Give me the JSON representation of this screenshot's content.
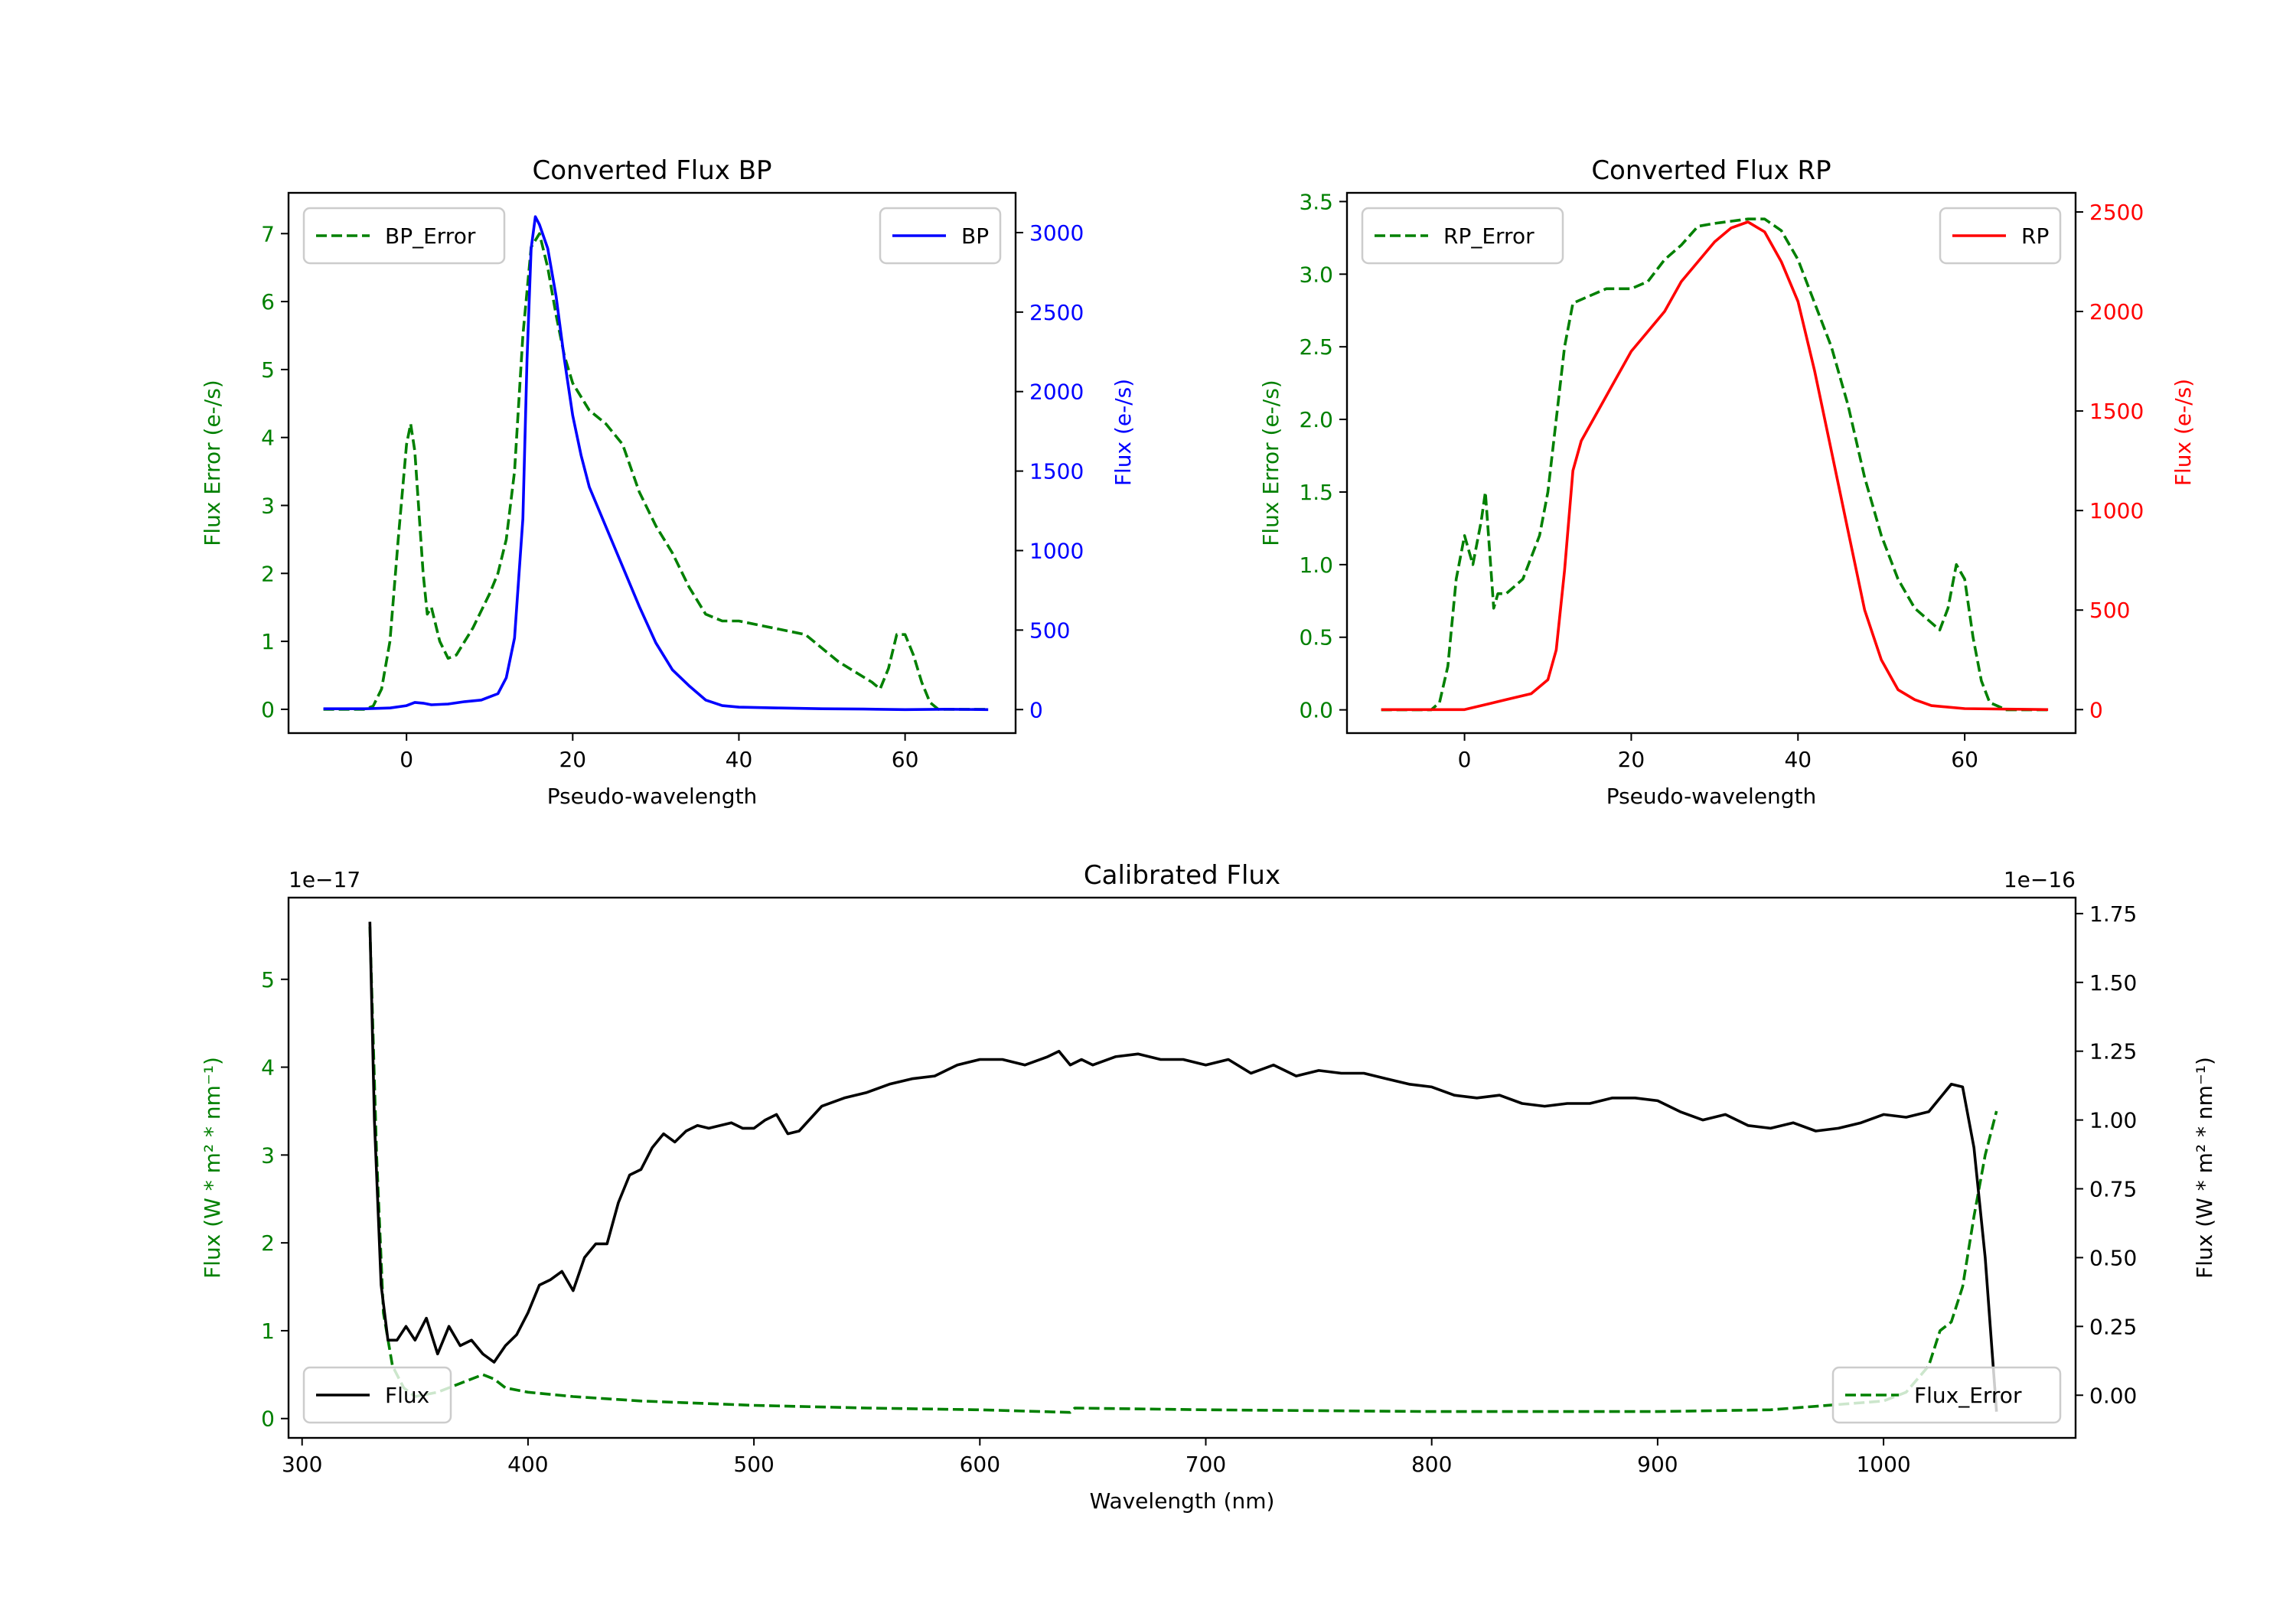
{
  "chart_data": [
    {
      "type": "line",
      "title": "Converted Flux BP",
      "xlabel": "Pseudo-wavelength",
      "ylabel_left": "Flux Error (e-/s)",
      "ylabel_right": "Flux (e-/s)",
      "xlim": [
        -14.2,
        73.3
      ],
      "ylim_left": [
        -0.35,
        7.6
      ],
      "ylim_right": [
        -148,
        3250
      ],
      "xticks": [
        0,
        20,
        40,
        60
      ],
      "xtick_labels": [
        "0",
        "20",
        "40",
        "60"
      ],
      "yticks_left": [
        0,
        1,
        2,
        3,
        4,
        5,
        6,
        7
      ],
      "ytick_labels_left": [
        "0",
        "1",
        "2",
        "3",
        "4",
        "5",
        "6",
        "7"
      ],
      "yticks_right": [
        0,
        500,
        1000,
        1500,
        2000,
        2500,
        3000
      ],
      "ytick_labels_right": [
        "0",
        "500",
        "1000",
        "1500",
        "2000",
        "2500",
        "3000"
      ],
      "left_color": "#008000",
      "right_color": "#0000ff",
      "series": [
        {
          "name": "BP_Error",
          "axis": "left",
          "style": "dashed",
          "color": "#008000",
          "legend": "upper left",
          "x": [
            -10,
            -5,
            -4,
            -3,
            -2,
            -1,
            0,
            0.5,
            1,
            2,
            2.5,
            3,
            4,
            5,
            6,
            7,
            8,
            10,
            11,
            12,
            13,
            14,
            15,
            16,
            17,
            18,
            19,
            20,
            22,
            24,
            26,
            28,
            30,
            32,
            34,
            36,
            38,
            40,
            44,
            48,
            50,
            52,
            56,
            57,
            58,
            59,
            60,
            61,
            62,
            63,
            64,
            70
          ],
          "y": [
            0,
            0,
            0.05,
            0.3,
            1,
            2.5,
            3.9,
            4.2,
            3.8,
            2,
            1.4,
            1.5,
            1.0,
            0.75,
            0.8,
            1.0,
            1.2,
            1.7,
            2.0,
            2.5,
            3.5,
            5.5,
            6.8,
            7.0,
            6.5,
            5.8,
            5.2,
            4.8,
            4.4,
            4.2,
            3.9,
            3.2,
            2.7,
            2.3,
            1.8,
            1.4,
            1.3,
            1.3,
            1.2,
            1.1,
            0.9,
            0.7,
            0.4,
            0.3,
            0.6,
            1.1,
            1.1,
            0.8,
            0.4,
            0.1,
            0,
            0
          ]
        },
        {
          "name": "BP",
          "axis": "right",
          "style": "solid",
          "color": "#0000ff",
          "legend": "upper right",
          "x": [
            -10,
            -5,
            -2,
            0,
            1,
            2,
            3,
            5,
            7,
            9,
            11,
            12,
            13,
            14,
            14.5,
            15,
            15.5,
            16,
            17,
            18,
            19,
            20,
            21,
            22,
            24,
            26,
            28,
            30,
            32,
            34,
            36,
            38,
            40,
            45,
            50,
            55,
            60,
            65,
            70
          ],
          "y": [
            5,
            5,
            10,
            25,
            45,
            40,
            30,
            35,
            50,
            60,
            100,
            200,
            450,
            1200,
            2200,
            2900,
            3100,
            3050,
            2900,
            2600,
            2200,
            1850,
            1600,
            1400,
            1150,
            900,
            650,
            420,
            250,
            150,
            60,
            25,
            15,
            10,
            5,
            3,
            0,
            2,
            0
          ]
        }
      ]
    },
    {
      "type": "line",
      "title": "Converted Flux RP",
      "xlabel": "Pseudo-wavelength",
      "ylabel_left": "Flux Error (e-/s)",
      "ylabel_right": "Flux (e-/s)",
      "xlim": [
        -14.1,
        73.3
      ],
      "ylim_left": [
        -0.16,
        3.56
      ],
      "ylim_right": [
        -118,
        2596
      ],
      "xticks": [
        0,
        20,
        40,
        60
      ],
      "xtick_labels": [
        "0",
        "20",
        "40",
        "60"
      ],
      "yticks_left": [
        0,
        0.5,
        1,
        1.5,
        2,
        2.5,
        3,
        3.5
      ],
      "ytick_labels_left": [
        "0.0",
        "0.5",
        "1.0",
        "1.5",
        "2.0",
        "2.5",
        "3.0",
        "3.5"
      ],
      "yticks_right": [
        0,
        500,
        1000,
        1500,
        2000,
        2500
      ],
      "ytick_labels_right": [
        "0",
        "500",
        "1000",
        "1500",
        "2000",
        "2500"
      ],
      "left_color": "#008000",
      "right_color": "#ff0000",
      "series": [
        {
          "name": "RP_Error",
          "axis": "left",
          "style": "dashed",
          "color": "#008000",
          "legend": "upper left",
          "x": [
            -10,
            -4,
            -3,
            -2,
            -1,
            0,
            0.5,
            1,
            2,
            2.5,
            3,
            3.5,
            4,
            5,
            7,
            9,
            10,
            11,
            12,
            13,
            15,
            17,
            20,
            22,
            24,
            26,
            28,
            30,
            34,
            36,
            38,
            40,
            42,
            44,
            46,
            48,
            50,
            52,
            54,
            56,
            57,
            58,
            59,
            60,
            61,
            62,
            63,
            65,
            70
          ],
          "y": [
            0,
            0,
            0.05,
            0.3,
            0.9,
            1.2,
            1.1,
            1.0,
            1.3,
            1.5,
            1.1,
            0.7,
            0.8,
            0.8,
            0.9,
            1.2,
            1.5,
            2.0,
            2.5,
            2.8,
            2.85,
            2.9,
            2.9,
            2.95,
            3.1,
            3.2,
            3.33,
            3.35,
            3.38,
            3.38,
            3.3,
            3.1,
            2.8,
            2.5,
            2.1,
            1.6,
            1.2,
            0.9,
            0.7,
            0.6,
            0.55,
            0.7,
            1.0,
            0.9,
            0.5,
            0.2,
            0.05,
            0,
            0
          ]
        },
        {
          "name": "RP",
          "axis": "right",
          "style": "solid",
          "color": "#ff0000",
          "legend": "upper right",
          "x": [
            -10,
            0,
            3,
            5,
            8,
            10,
            11,
            12,
            13,
            14,
            16,
            18,
            20,
            22,
            24,
            26,
            28,
            30,
            32,
            34,
            36,
            38,
            40,
            42,
            44,
            46,
            48,
            50,
            52,
            54,
            56,
            60,
            70
          ],
          "y": [
            0,
            0,
            30,
            50,
            80,
            150,
            300,
            700,
            1200,
            1350,
            1500,
            1650,
            1800,
            1900,
            2000,
            2150,
            2250,
            2350,
            2420,
            2450,
            2400,
            2250,
            2050,
            1700,
            1300,
            900,
            500,
            250,
            100,
            50,
            20,
            5,
            0
          ]
        }
      ]
    },
    {
      "type": "line",
      "title": "Calibrated Flux",
      "xlabel": "Wavelength (nm)",
      "ylabel_left": "Flux (W * m² * nm⁻¹)",
      "ylabel_right": "Flux (W * m² * nm⁻¹)",
      "offset_left": "1e−17",
      "offset_right": "1e−16",
      "xlim": [
        294,
        1085
      ],
      "ylim_left": [
        -0.22,
        5.93
      ],
      "ylim_right": [
        -0.155,
        1.808
      ],
      "xticks": [
        300,
        400,
        500,
        600,
        700,
        800,
        900,
        1000
      ],
      "xtick_labels": [
        "300",
        "400",
        "500",
        "600",
        "700",
        "800",
        "900",
        "1000"
      ],
      "yticks_left": [
        0,
        1,
        2,
        3,
        4,
        5
      ],
      "ytick_labels_left": [
        "0",
        "1",
        "2",
        "3",
        "4",
        "5"
      ],
      "yticks_right": [
        0,
        0.25,
        0.5,
        0.75,
        1.0,
        1.25,
        1.5,
        1.75
      ],
      "ytick_labels_right": [
        "0.00",
        "0.25",
        "0.50",
        "0.75",
        "1.00",
        "1.25",
        "1.50",
        "1.75"
      ],
      "left_color": "#008000",
      "right_color": "#000000",
      "series": [
        {
          "name": "Flux_Error",
          "axis": "left",
          "style": "dashed",
          "color": "#008000",
          "legend": "lower right",
          "x": [
            330,
            333,
            336,
            340,
            345,
            350,
            360,
            370,
            380,
            385,
            390,
            400,
            420,
            450,
            500,
            550,
            600,
            640,
            642,
            700,
            800,
            900,
            950,
            1000,
            1010,
            1020,
            1025,
            1030,
            1035,
            1040,
            1045,
            1050
          ],
          "y": [
            5.6,
            3,
            1.2,
            0.6,
            0.35,
            0.25,
            0.3,
            0.4,
            0.5,
            0.45,
            0.35,
            0.3,
            0.25,
            0.2,
            0.15,
            0.12,
            0.1,
            0.07,
            0.12,
            0.1,
            0.08,
            0.08,
            0.1,
            0.2,
            0.3,
            0.6,
            1.0,
            1.1,
            1.5,
            2.3,
            3.0,
            3.5
          ]
        },
        {
          "name": "Flux",
          "axis": "right",
          "style": "solid",
          "color": "#000000",
          "legend": "lower left",
          "x": [
            330,
            332,
            335,
            338,
            342,
            346,
            350,
            355,
            360,
            365,
            370,
            375,
            380,
            385,
            390,
            395,
            400,
            405,
            410,
            415,
            420,
            425,
            430,
            435,
            440,
            445,
            450,
            455,
            460,
            465,
            470,
            475,
            480,
            490,
            495,
            500,
            505,
            510,
            515,
            520,
            530,
            540,
            550,
            560,
            570,
            580,
            590,
            600,
            610,
            620,
            630,
            635,
            640,
            645,
            650,
            660,
            670,
            680,
            690,
            700,
            710,
            720,
            730,
            740,
            750,
            760,
            770,
            780,
            790,
            800,
            810,
            820,
            830,
            840,
            850,
            860,
            870,
            880,
            890,
            900,
            910,
            920,
            930,
            940,
            950,
            960,
            970,
            980,
            990,
            1000,
            1010,
            1020,
            1030,
            1035,
            1040,
            1045,
            1050
          ],
          "y": [
            1.72,
            1.0,
            0.4,
            0.2,
            0.2,
            0.25,
            0.2,
            0.28,
            0.15,
            0.25,
            0.18,
            0.2,
            0.15,
            0.12,
            0.18,
            0.22,
            0.3,
            0.4,
            0.42,
            0.45,
            0.38,
            0.5,
            0.55,
            0.55,
            0.7,
            0.8,
            0.82,
            0.9,
            0.95,
            0.92,
            0.96,
            0.98,
            0.97,
            0.99,
            0.97,
            0.97,
            1.0,
            1.02,
            0.95,
            0.96,
            1.05,
            1.08,
            1.1,
            1.13,
            1.15,
            1.16,
            1.2,
            1.22,
            1.22,
            1.2,
            1.23,
            1.25,
            1.2,
            1.22,
            1.2,
            1.23,
            1.24,
            1.22,
            1.22,
            1.2,
            1.22,
            1.17,
            1.2,
            1.16,
            1.18,
            1.17,
            1.17,
            1.15,
            1.13,
            1.12,
            1.09,
            1.08,
            1.09,
            1.06,
            1.05,
            1.06,
            1.06,
            1.08,
            1.08,
            1.07,
            1.03,
            1.0,
            1.02,
            0.98,
            0.97,
            0.99,
            0.96,
            0.97,
            0.99,
            1.02,
            1.01,
            1.03,
            1.13,
            1.12,
            0.9,
            0.5,
            -0.06
          ]
        }
      ]
    }
  ]
}
